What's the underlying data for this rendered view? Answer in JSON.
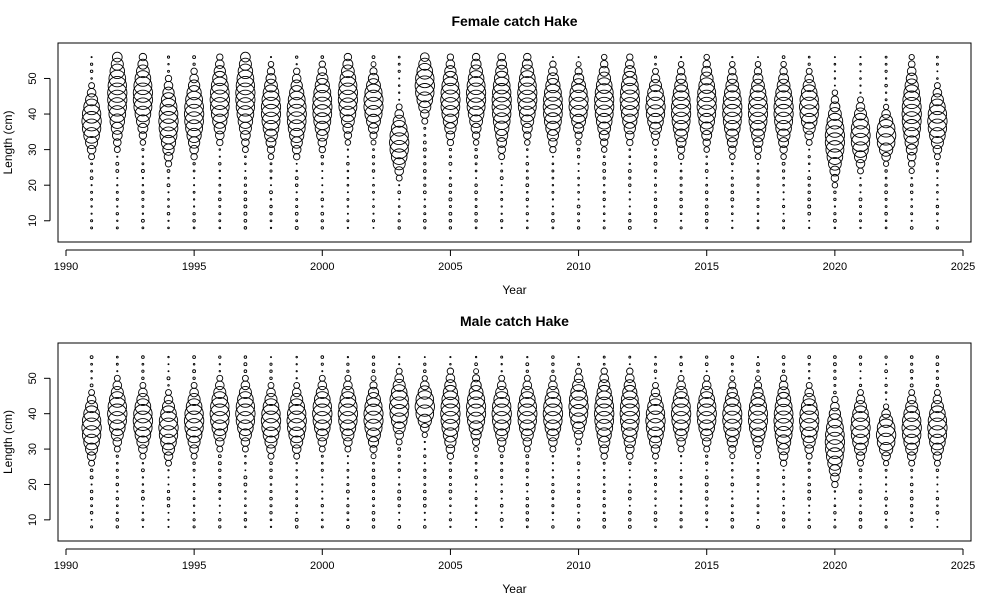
{
  "chart_data": [
    {
      "type": "scatter",
      "subtype": "bubble",
      "title": "Female catch Hake",
      "xlabel": "Year",
      "ylabel": "Length (cm)",
      "xlim": [
        1990,
        2025
      ],
      "ylim": [
        6,
        58
      ],
      "xticks": [
        1990,
        1995,
        2000,
        2005,
        2010,
        2015,
        2020,
        2025
      ],
      "yticks": [
        10,
        20,
        30,
        40,
        50
      ],
      "grid": false,
      "modes": {
        "1991": [
          38,
          4
        ],
        "1992": [
          45,
          6
        ],
        "1993": [
          45,
          5
        ],
        "1994": [
          38,
          5
        ],
        "1995": [
          40,
          5
        ],
        "1996": [
          44,
          5
        ],
        "1997": [
          45,
          6
        ],
        "1998": [
          41,
          5
        ],
        "1999": [
          40,
          5
        ],
        "2000": [
          42,
          5
        ],
        "2001": [
          45,
          5
        ],
        "2002": [
          43,
          4
        ],
        "2003": [
          32,
          4
        ],
        "2004": [
          48,
          4
        ],
        "2005": [
          44,
          5
        ],
        "2006": [
          45,
          5
        ],
        "2007": [
          43,
          6
        ],
        "2008": [
          45,
          5
        ],
        "2009": [
          42,
          5
        ],
        "2010": [
          43,
          4
        ],
        "2011": [
          43,
          5
        ],
        "2012": [
          44,
          5
        ],
        "2013": [
          42,
          4
        ],
        "2014": [
          41,
          5
        ],
        "2015": [
          43,
          5
        ],
        "2016": [
          41,
          5
        ],
        "2017": [
          41,
          5
        ],
        "2018": [
          41,
          5
        ],
        "2019": [
          42,
          4
        ],
        "2020": [
          33,
          5
        ],
        "2021": [
          34,
          4
        ],
        "2022": [
          34,
          3
        ],
        "2023": [
          40,
          6
        ],
        "2024": [
          38,
          4
        ]
      }
    },
    {
      "type": "scatter",
      "subtype": "bubble",
      "title": "Male catch Hake",
      "xlabel": "Year",
      "ylabel": "Length (cm)",
      "xlim": [
        1990,
        2025
      ],
      "ylim": [
        6,
        58
      ],
      "xticks": [
        1990,
        1995,
        2000,
        2005,
        2010,
        2015,
        2020,
        2025
      ],
      "yticks": [
        10,
        20,
        30,
        40,
        50
      ],
      "grid": false,
      "modes": {
        "1991": [
          36,
          4
        ],
        "1992": [
          40,
          4
        ],
        "1993": [
          38,
          4
        ],
        "1994": [
          36,
          4
        ],
        "1995": [
          38,
          4
        ],
        "1996": [
          40,
          4
        ],
        "1997": [
          40,
          4
        ],
        "1998": [
          38,
          4
        ],
        "1999": [
          38,
          4
        ],
        "2000": [
          40,
          4
        ],
        "2001": [
          40,
          4
        ],
        "2002": [
          39,
          4
        ],
        "2003": [
          42,
          4
        ],
        "2004": [
          42,
          3
        ],
        "2005": [
          40,
          5
        ],
        "2006": [
          41,
          4
        ],
        "2007": [
          40,
          4
        ],
        "2008": [
          40,
          4
        ],
        "2009": [
          40,
          4
        ],
        "2010": [
          42,
          4
        ],
        "2011": [
          40,
          5
        ],
        "2012": [
          40,
          5
        ],
        "2013": [
          38,
          4
        ],
        "2014": [
          40,
          4
        ],
        "2015": [
          40,
          4
        ],
        "2016": [
          39,
          4
        ],
        "2017": [
          39,
          4
        ],
        "2018": [
          38,
          5
        ],
        "2019": [
          38,
          4
        ],
        "2020": [
          32,
          5
        ],
        "2021": [
          36,
          4
        ],
        "2022": [
          34,
          3
        ],
        "2023": [
          36,
          4
        ],
        "2024": [
          36,
          4
        ]
      }
    }
  ]
}
